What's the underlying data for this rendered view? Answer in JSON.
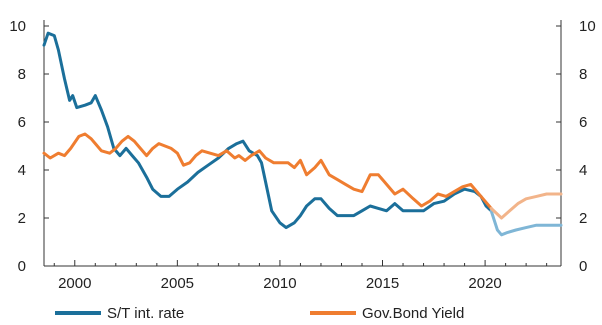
{
  "chart_data": {
    "type": "line",
    "title": "",
    "xlabel": "",
    "ylabel": "",
    "xlim": [
      1998.5,
      2023.7
    ],
    "ylim": [
      0,
      10
    ],
    "y_ticks": [
      0,
      2,
      4,
      6,
      8,
      10
    ],
    "y_tick_labels": [
      "0",
      "2",
      "4",
      "6",
      "8",
      "10"
    ],
    "x_ticks": [
      2000,
      2005,
      2010,
      2015,
      2020
    ],
    "x_tick_labels": [
      "2000",
      "2005",
      "2010",
      "2015",
      "2020"
    ],
    "dual_y_axis": true,
    "grid": false,
    "legend_position": "bottom",
    "series": [
      {
        "name": "S/T int. rate",
        "color": "#1b6f9a",
        "forecast_color": "#7fb6d6",
        "x": [
          1998.5,
          1998.7,
          1999.0,
          1999.2,
          1999.5,
          1999.75,
          1999.9,
          2000.1,
          2000.5,
          2000.8,
          2001.0,
          2001.3,
          2001.6,
          2001.9,
          2002.2,
          2002.5,
          2002.8,
          2003.1,
          2003.5,
          2003.8,
          2004.2,
          2004.6,
          2005.0,
          2005.5,
          2006.0,
          2006.5,
          2007.0,
          2007.5,
          2007.9,
          2008.2,
          2008.5,
          2008.9,
          2009.1,
          2009.3,
          2009.6,
          2010.0,
          2010.3,
          2010.7,
          2011.0,
          2011.3,
          2011.7,
          2012.0,
          2012.4,
          2012.8,
          2013.2,
          2013.6,
          2014.0,
          2014.4,
          2014.8,
          2015.2,
          2015.6,
          2016.0,
          2016.5,
          2017.0,
          2017.5,
          2018.0,
          2018.5,
          2019.0,
          2019.5,
          2019.8,
          2020.05,
          2020.3
        ],
        "values": [
          9.2,
          9.7,
          9.6,
          9.0,
          7.8,
          6.9,
          7.1,
          6.6,
          6.7,
          6.8,
          7.1,
          6.5,
          5.8,
          4.9,
          4.6,
          4.9,
          4.6,
          4.3,
          3.7,
          3.2,
          2.9,
          2.9,
          3.2,
          3.5,
          3.9,
          4.2,
          4.5,
          4.9,
          5.1,
          5.2,
          4.8,
          4.6,
          4.3,
          3.5,
          2.3,
          1.8,
          1.6,
          1.8,
          2.1,
          2.5,
          2.8,
          2.8,
          2.4,
          2.1,
          2.1,
          2.1,
          2.3,
          2.5,
          2.4,
          2.3,
          2.6,
          2.3,
          2.3,
          2.3,
          2.6,
          2.7,
          3.0,
          3.2,
          3.1,
          2.9,
          2.5,
          2.3
        ],
        "forecast_x": [
          2020.3,
          2020.6,
          2020.8,
          2021.1,
          2021.5,
          2022.0,
          2022.5,
          2023.0,
          2023.7
        ],
        "forecast_values": [
          2.3,
          1.5,
          1.3,
          1.4,
          1.5,
          1.6,
          1.7,
          1.7,
          1.7
        ]
      },
      {
        "name": "Gov.Bond Yield",
        "color": "#ef7d30",
        "forecast_color": "#f2b48a",
        "x": [
          1998.5,
          1998.8,
          1999.2,
          1999.5,
          1999.8,
          2000.2,
          2000.5,
          2000.8,
          2001.0,
          2001.3,
          2001.7,
          2002.0,
          2002.3,
          2002.6,
          2002.9,
          2003.2,
          2003.5,
          2003.8,
          2004.1,
          2004.4,
          2004.7,
          2005.0,
          2005.3,
          2005.6,
          2005.9,
          2006.2,
          2006.6,
          2007.0,
          2007.4,
          2007.8,
          2008.0,
          2008.3,
          2008.6,
          2009.0,
          2009.3,
          2009.7,
          2010.0,
          2010.4,
          2010.7,
          2011.0,
          2011.3,
          2011.7,
          2012.0,
          2012.4,
          2012.8,
          2013.2,
          2013.6,
          2014.0,
          2014.4,
          2014.8,
          2015.2,
          2015.6,
          2016.0,
          2016.5,
          2016.9,
          2017.3,
          2017.7,
          2018.1,
          2018.5,
          2018.9,
          2019.3,
          2019.7,
          2020.0,
          2020.3
        ],
        "values": [
          4.7,
          4.5,
          4.7,
          4.6,
          4.9,
          5.4,
          5.5,
          5.3,
          5.1,
          4.8,
          4.7,
          4.9,
          5.2,
          5.4,
          5.2,
          4.9,
          4.6,
          4.9,
          5.1,
          5.0,
          4.9,
          4.7,
          4.2,
          4.3,
          4.6,
          4.8,
          4.7,
          4.6,
          4.8,
          4.5,
          4.6,
          4.4,
          4.6,
          4.8,
          4.5,
          4.3,
          4.3,
          4.3,
          4.1,
          4.4,
          3.8,
          4.1,
          4.4,
          3.8,
          3.6,
          3.4,
          3.2,
          3.1,
          3.8,
          3.8,
          3.4,
          3.0,
          3.2,
          2.8,
          2.5,
          2.7,
          3.0,
          2.9,
          3.1,
          3.3,
          3.4,
          3.0,
          2.7,
          2.4
        ],
        "forecast_x": [
          2020.3,
          2020.8,
          2021.2,
          2021.6,
          2022.0,
          2022.5,
          2023.0,
          2023.7
        ],
        "forecast_values": [
          2.4,
          2.0,
          2.3,
          2.6,
          2.8,
          2.9,
          3.0,
          3.0
        ]
      }
    ]
  }
}
